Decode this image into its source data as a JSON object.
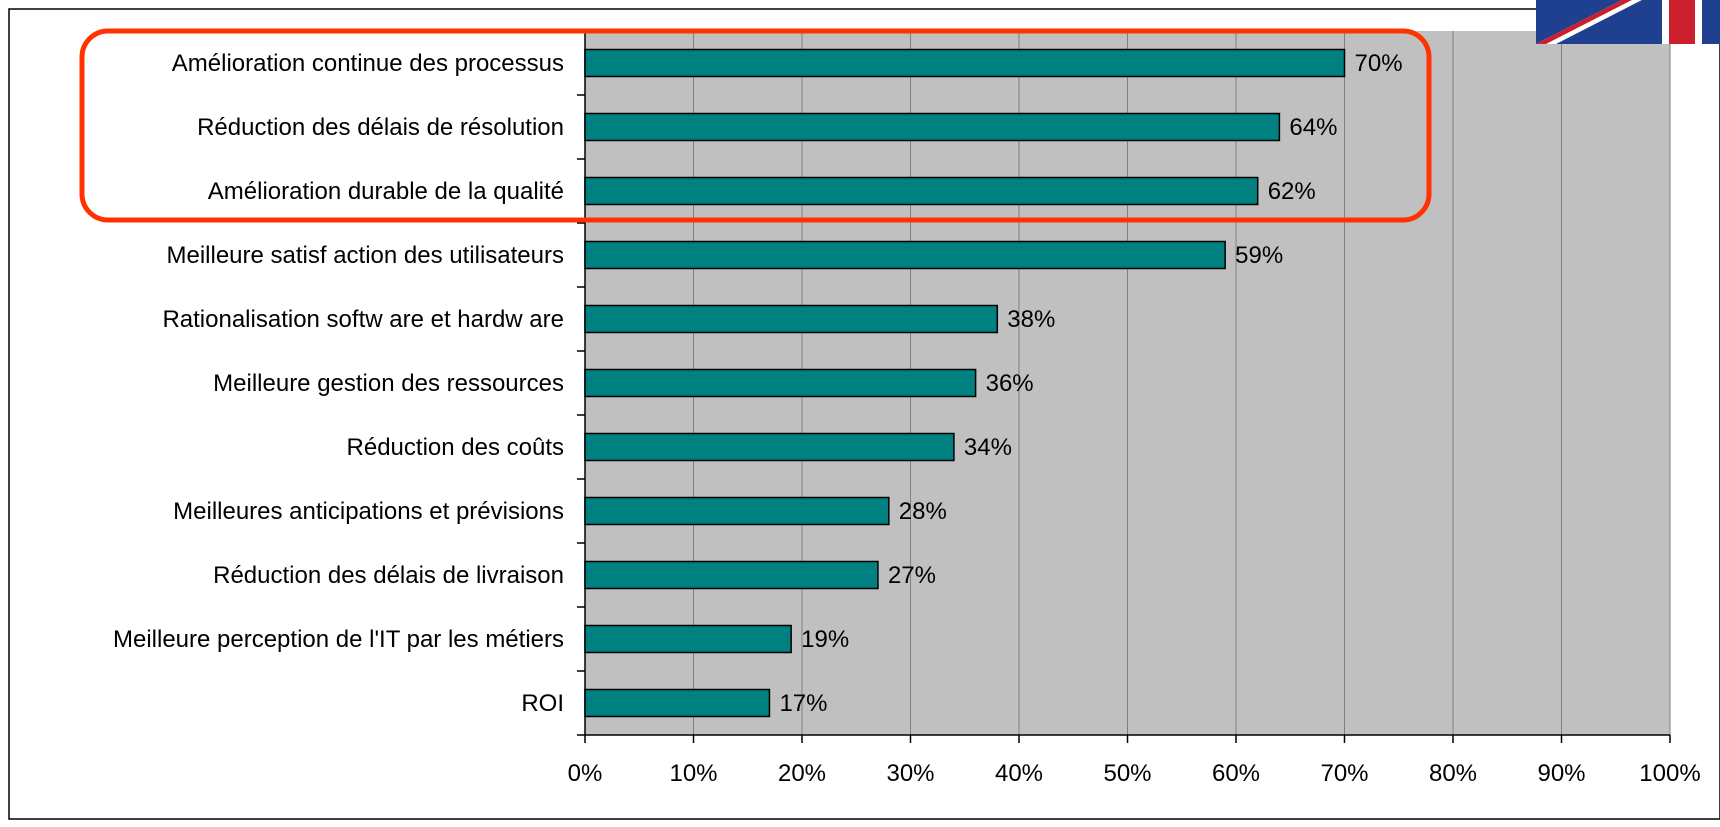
{
  "chart_data": {
    "type": "bar",
    "orientation": "horizontal",
    "categories": [
      "Amélioration continue des processus",
      "Réduction des délais de résolution",
      "Amélioration durable de la qualité",
      "Meilleure satisf action des utilisateurs",
      "Rationalisation softw are  et hardw are",
      "Meilleure gestion des ressources",
      "Réduction des coûts",
      "Meilleures anticipations et prévisions",
      "Réduction des délais de livraison",
      "Meilleure perception de l'IT par les métiers",
      "ROI"
    ],
    "values": [
      70,
      64,
      62,
      59,
      38,
      36,
      34,
      28,
      27,
      19,
      17
    ],
    "value_labels": [
      "70%",
      "64%",
      "62%",
      "59%",
      "38%",
      "36%",
      "34%",
      "28%",
      "27%",
      "19%",
      "17%"
    ],
    "x_ticks": [
      "0%",
      "10%",
      "20%",
      "30%",
      "40%",
      "50%",
      "60%",
      "70%",
      "80%",
      "90%",
      "100%"
    ],
    "xlim": [
      0,
      100
    ],
    "grid": "vertical",
    "highlighted_categories": [
      0,
      1,
      2
    ],
    "title": "",
    "xlabel": "",
    "ylabel": ""
  },
  "colors": {
    "bar_fill": "#008080",
    "bar_stroke": "#000000",
    "plot_background": "#c0c0c0",
    "gridline": "#808080",
    "highlight_box": "#ff3300"
  },
  "icons": {
    "corner_flag": "uk-flag-icon"
  }
}
